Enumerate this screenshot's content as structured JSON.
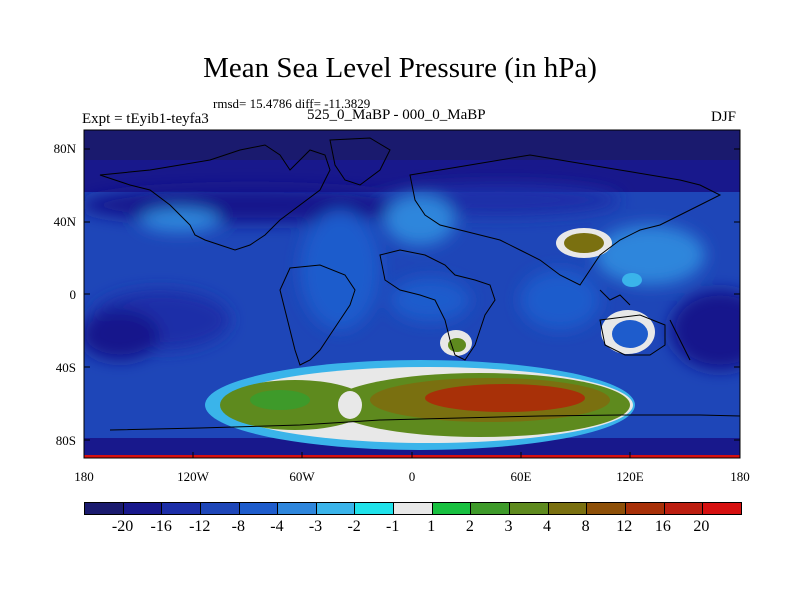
{
  "title": "Mean Sea Level Pressure (in hPa)",
  "stats": "rmsd= 15.4786 diff= -11.3829",
  "expt": "Expt = tEyib1-teyfa3",
  "subtitle": "525_0_MaBP - 000_0_MaBP",
  "season": "DJF",
  "y_axis": {
    "ticks": [
      {
        "value": 80,
        "label": "80N"
      },
      {
        "value": 40,
        "label": "40N"
      },
      {
        "value": 0,
        "label": "0"
      },
      {
        "value": -40,
        "label": "40S"
      },
      {
        "value": -80,
        "label": "80S"
      }
    ]
  },
  "x_axis": {
    "ticks": [
      {
        "value": -180,
        "label": "180"
      },
      {
        "value": -120,
        "label": "120W"
      },
      {
        "value": -60,
        "label": "60W"
      },
      {
        "value": 0,
        "label": "0"
      },
      {
        "value": 60,
        "label": "60E"
      },
      {
        "value": 120,
        "label": "120E"
      },
      {
        "value": 180,
        "label": "180"
      }
    ]
  },
  "colorbar": {
    "colors": [
      "#1a1a6e",
      "#18188c",
      "#1c2ea8",
      "#1e46b8",
      "#1e5ccc",
      "#2e86dc",
      "#3ab4ea",
      "#20e2ea",
      "#e8e8e8",
      "#18c040",
      "#3e9a2a",
      "#5e8a1e",
      "#7a7010",
      "#8e5008",
      "#a83008",
      "#bc1e10",
      "#d61010"
    ],
    "labels": [
      "-20",
      "-16",
      "-12",
      "-8",
      "-4",
      "-3",
      "-2",
      "-1",
      "1",
      "2",
      "3",
      "4",
      "8",
      "12",
      "16",
      "20"
    ]
  }
}
